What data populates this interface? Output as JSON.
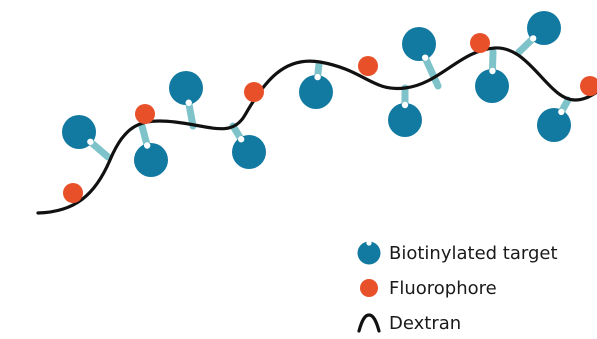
{
  "colors": {
    "target": "#1279a0",
    "linker": "#7dc3c9",
    "fluorophore": "#e8502a",
    "dextran": "#111111"
  },
  "legend": {
    "target_label": "Biotinylated target",
    "fluorophore_label": "Fluorophore",
    "dextran_label": "Dextran"
  }
}
